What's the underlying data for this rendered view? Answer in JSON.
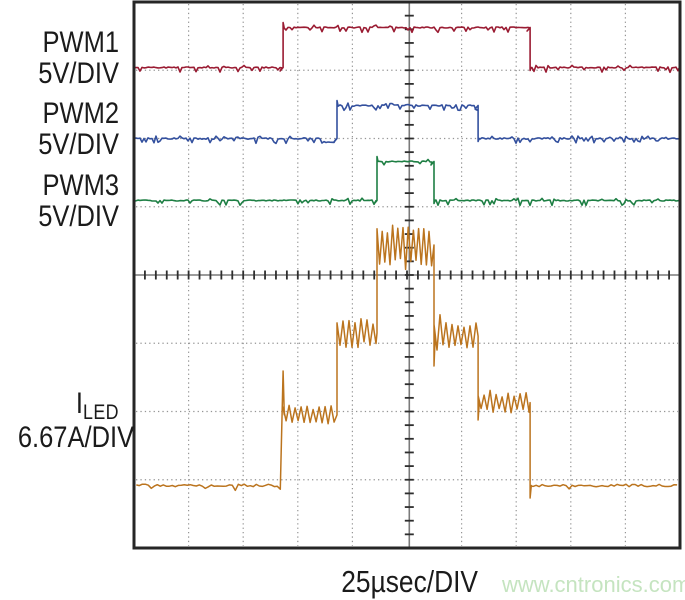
{
  "window": {
    "background": "#ffffff"
  },
  "channels": [
    {
      "id": "pwm1",
      "label": "PWM1",
      "scale": "5V/DIV",
      "color": "#9a1b32"
    },
    {
      "id": "pwm2",
      "label": "PWM2",
      "scale": "5V/DIV",
      "color": "#33509e"
    },
    {
      "id": "pwm3",
      "label": "PWM3",
      "scale": "5V/DIV",
      "color": "#1e7f44"
    },
    {
      "id": "iled",
      "label_main": "I",
      "label_sub": "LED",
      "scale": "6.67A/DIV",
      "color": "#bb741e"
    }
  ],
  "timebase": {
    "label": "25µsec/DIV"
  },
  "watermark": {
    "text": "www.cntronics.com",
    "color": "#c5e4c0"
  },
  "chart_data": {
    "type": "line",
    "subtype": "oscilloscope-screenshot",
    "title": "",
    "xlabel": "25µsec/DIV",
    "x_axis": {
      "us_per_div": 25,
      "divisions": 10,
      "range_us": [
        -125,
        125
      ]
    },
    "y_axis": {
      "divisions": 8,
      "grid": "dotted graticule with ticked center crosshair"
    },
    "grid_colors": {
      "dots": "#959595",
      "center_line": "#7a7a7a",
      "center_ticks": "#2e2e2e",
      "border": "#262626"
    },
    "series": [
      {
        "name": "PWM1",
        "scale_per_div": "5V",
        "color": "#9a1b32",
        "type": "pulse",
        "high_interval_us": [
          -57.8,
          55.3
        ]
      },
      {
        "name": "PWM2",
        "scale_per_div": "5V",
        "color": "#33509e",
        "type": "pulse",
        "high_interval_us": [
          -33.1,
          31.5
        ]
      },
      {
        "name": "PWM3",
        "scale_per_div": "5V",
        "color": "#1e7f44",
        "type": "pulse",
        "high_interval_us": [
          -14.8,
          11.3
        ]
      },
      {
        "name": "ILED",
        "scale_per_div": "6.67A",
        "color": "#bb741e",
        "type": "staircase",
        "steps": [
          {
            "t_us": [
              -125,
              -57.8
            ],
            "amps": 0,
            "ripple_pp_A": 0.25
          },
          {
            "t_us": [
              -57.8,
              -33.1
            ],
            "amps": 6.9,
            "ripple_pp_A": 1.8
          },
          {
            "t_us": [
              -33.1,
              -14.8
            ],
            "amps": 14.9,
            "ripple_pp_A": 2.8
          },
          {
            "t_us": [
              -14.8,
              11.3
            ],
            "amps": 23.5,
            "ripple_pp_A": 4.1
          },
          {
            "t_us": [
              11.3,
              31.5
            ],
            "amps": 14.6,
            "ripple_pp_A": 2.9
          },
          {
            "t_us": [
              31.5,
              55.3
            ],
            "amps": 8.1,
            "ripple_pp_A": 2.0
          },
          {
            "t_us": [
              55.3,
              125
            ],
            "amps": 0,
            "ripple_pp_A": 0.25
          }
        ]
      }
    ]
  }
}
